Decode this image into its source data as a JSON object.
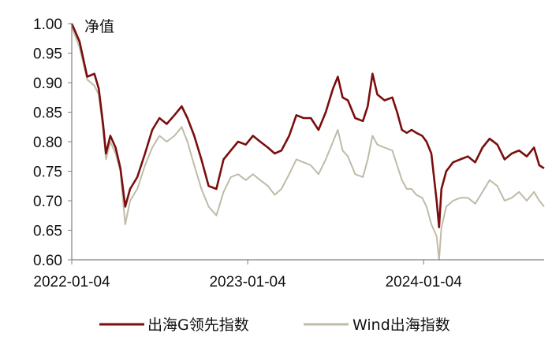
{
  "chart_data": {
    "type": "line",
    "ylabel": "净值",
    "ylim": [
      0.6,
      1.0
    ],
    "yticks": [
      "0.60",
      "0.65",
      "0.70",
      "0.75",
      "0.80",
      "0.85",
      "0.90",
      "0.95",
      "1.00"
    ],
    "xlim": [
      "2022-01-04",
      "2024-09-10"
    ],
    "xticks": [
      "2022-01-04",
      "2023-01-04",
      "2024-01-04"
    ],
    "grid": false,
    "legend_position": "bottom",
    "series": [
      {
        "name": "出海G领先指数",
        "color": "#7b0d0d",
        "points": [
          [
            "2022-01-04",
            1.0
          ],
          [
            "2022-01-20",
            0.97
          ],
          [
            "2022-02-05",
            0.91
          ],
          [
            "2022-02-20",
            0.915
          ],
          [
            "2022-03-01",
            0.89
          ],
          [
            "2022-03-10",
            0.83
          ],
          [
            "2022-03-16",
            0.78
          ],
          [
            "2022-03-25",
            0.81
          ],
          [
            "2022-04-05",
            0.79
          ],
          [
            "2022-04-15",
            0.755
          ],
          [
            "2022-04-25",
            0.69
          ],
          [
            "2022-05-05",
            0.72
          ],
          [
            "2022-05-20",
            0.74
          ],
          [
            "2022-06-05",
            0.78
          ],
          [
            "2022-06-20",
            0.82
          ],
          [
            "2022-07-05",
            0.84
          ],
          [
            "2022-07-20",
            0.83
          ],
          [
            "2022-08-05",
            0.845
          ],
          [
            "2022-08-20",
            0.86
          ],
          [
            "2022-09-01",
            0.84
          ],
          [
            "2022-09-15",
            0.81
          ],
          [
            "2022-09-30",
            0.77
          ],
          [
            "2022-10-15",
            0.725
          ],
          [
            "2022-10-31",
            0.72
          ],
          [
            "2022-11-15",
            0.77
          ],
          [
            "2022-11-30",
            0.785
          ],
          [
            "2022-12-15",
            0.8
          ],
          [
            "2022-12-31",
            0.795
          ],
          [
            "2023-01-15",
            0.81
          ],
          [
            "2023-01-30",
            0.8
          ],
          [
            "2023-02-15",
            0.79
          ],
          [
            "2023-03-01",
            0.78
          ],
          [
            "2023-03-15",
            0.785
          ],
          [
            "2023-03-31",
            0.81
          ],
          [
            "2023-04-15",
            0.845
          ],
          [
            "2023-04-30",
            0.84
          ],
          [
            "2023-05-15",
            0.84
          ],
          [
            "2023-05-31",
            0.82
          ],
          [
            "2023-06-15",
            0.85
          ],
          [
            "2023-06-30",
            0.89
          ],
          [
            "2023-07-10",
            0.91
          ],
          [
            "2023-07-20",
            0.875
          ],
          [
            "2023-07-31",
            0.87
          ],
          [
            "2023-08-15",
            0.84
          ],
          [
            "2023-08-31",
            0.835
          ],
          [
            "2023-09-10",
            0.86
          ],
          [
            "2023-09-20",
            0.915
          ],
          [
            "2023-09-30",
            0.88
          ],
          [
            "2023-10-15",
            0.87
          ],
          [
            "2023-10-31",
            0.875
          ],
          [
            "2023-11-10",
            0.85
          ],
          [
            "2023-11-20",
            0.82
          ],
          [
            "2023-11-30",
            0.815
          ],
          [
            "2023-12-10",
            0.82
          ],
          [
            "2023-12-20",
            0.815
          ],
          [
            "2024-01-01",
            0.81
          ],
          [
            "2024-01-10",
            0.8
          ],
          [
            "2024-01-20",
            0.78
          ],
          [
            "2024-01-31",
            0.7
          ],
          [
            "2024-02-05",
            0.655
          ],
          [
            "2024-02-10",
            0.72
          ],
          [
            "2024-02-20",
            0.75
          ],
          [
            "2024-03-05",
            0.765
          ],
          [
            "2024-03-20",
            0.77
          ],
          [
            "2024-04-05",
            0.775
          ],
          [
            "2024-04-20",
            0.765
          ],
          [
            "2024-05-05",
            0.79
          ],
          [
            "2024-05-20",
            0.805
          ],
          [
            "2024-06-05",
            0.795
          ],
          [
            "2024-06-20",
            0.77
          ],
          [
            "2024-07-05",
            0.78
          ],
          [
            "2024-07-20",
            0.785
          ],
          [
            "2024-08-05",
            0.775
          ],
          [
            "2024-08-20",
            0.79
          ],
          [
            "2024-08-31",
            0.76
          ],
          [
            "2024-09-10",
            0.755
          ]
        ]
      },
      {
        "name": "Wind出海指数",
        "color": "#bfbba8",
        "points": [
          [
            "2022-01-04",
            0.995
          ],
          [
            "2022-01-20",
            0.96
          ],
          [
            "2022-02-05",
            0.905
          ],
          [
            "2022-02-20",
            0.895
          ],
          [
            "2022-03-01",
            0.88
          ],
          [
            "2022-03-10",
            0.82
          ],
          [
            "2022-03-16",
            0.77
          ],
          [
            "2022-03-25",
            0.8
          ],
          [
            "2022-04-05",
            0.78
          ],
          [
            "2022-04-15",
            0.75
          ],
          [
            "2022-04-25",
            0.66
          ],
          [
            "2022-05-05",
            0.7
          ],
          [
            "2022-05-20",
            0.72
          ],
          [
            "2022-06-05",
            0.76
          ],
          [
            "2022-06-20",
            0.79
          ],
          [
            "2022-07-05",
            0.81
          ],
          [
            "2022-07-20",
            0.8
          ],
          [
            "2022-08-05",
            0.81
          ],
          [
            "2022-08-20",
            0.825
          ],
          [
            "2022-09-01",
            0.8
          ],
          [
            "2022-09-15",
            0.76
          ],
          [
            "2022-09-30",
            0.72
          ],
          [
            "2022-10-15",
            0.69
          ],
          [
            "2022-10-31",
            0.675
          ],
          [
            "2022-11-15",
            0.715
          ],
          [
            "2022-11-30",
            0.74
          ],
          [
            "2022-12-15",
            0.745
          ],
          [
            "2022-12-31",
            0.735
          ],
          [
            "2023-01-15",
            0.745
          ],
          [
            "2023-01-30",
            0.735
          ],
          [
            "2023-02-15",
            0.725
          ],
          [
            "2023-03-01",
            0.71
          ],
          [
            "2023-03-15",
            0.72
          ],
          [
            "2023-03-31",
            0.745
          ],
          [
            "2023-04-15",
            0.77
          ],
          [
            "2023-04-30",
            0.765
          ],
          [
            "2023-05-15",
            0.76
          ],
          [
            "2023-05-31",
            0.745
          ],
          [
            "2023-06-15",
            0.77
          ],
          [
            "2023-06-30",
            0.8
          ],
          [
            "2023-07-10",
            0.82
          ],
          [
            "2023-07-20",
            0.785
          ],
          [
            "2023-07-31",
            0.775
          ],
          [
            "2023-08-15",
            0.745
          ],
          [
            "2023-08-31",
            0.74
          ],
          [
            "2023-09-10",
            0.77
          ],
          [
            "2023-09-20",
            0.81
          ],
          [
            "2023-09-30",
            0.795
          ],
          [
            "2023-10-15",
            0.79
          ],
          [
            "2023-10-31",
            0.785
          ],
          [
            "2023-11-10",
            0.76
          ],
          [
            "2023-11-20",
            0.735
          ],
          [
            "2023-11-30",
            0.72
          ],
          [
            "2023-12-10",
            0.72
          ],
          [
            "2023-12-20",
            0.71
          ],
          [
            "2024-01-01",
            0.705
          ],
          [
            "2024-01-10",
            0.69
          ],
          [
            "2024-01-20",
            0.66
          ],
          [
            "2024-01-31",
            0.64
          ],
          [
            "2024-02-05",
            0.6
          ],
          [
            "2024-02-10",
            0.655
          ],
          [
            "2024-02-20",
            0.69
          ],
          [
            "2024-03-05",
            0.7
          ],
          [
            "2024-03-20",
            0.705
          ],
          [
            "2024-04-05",
            0.705
          ],
          [
            "2024-04-20",
            0.695
          ],
          [
            "2024-05-05",
            0.715
          ],
          [
            "2024-05-20",
            0.735
          ],
          [
            "2024-06-05",
            0.725
          ],
          [
            "2024-06-20",
            0.7
          ],
          [
            "2024-07-05",
            0.705
          ],
          [
            "2024-07-20",
            0.715
          ],
          [
            "2024-08-05",
            0.7
          ],
          [
            "2024-08-20",
            0.715
          ],
          [
            "2024-08-31",
            0.7
          ],
          [
            "2024-09-10",
            0.69
          ]
        ]
      }
    ]
  }
}
